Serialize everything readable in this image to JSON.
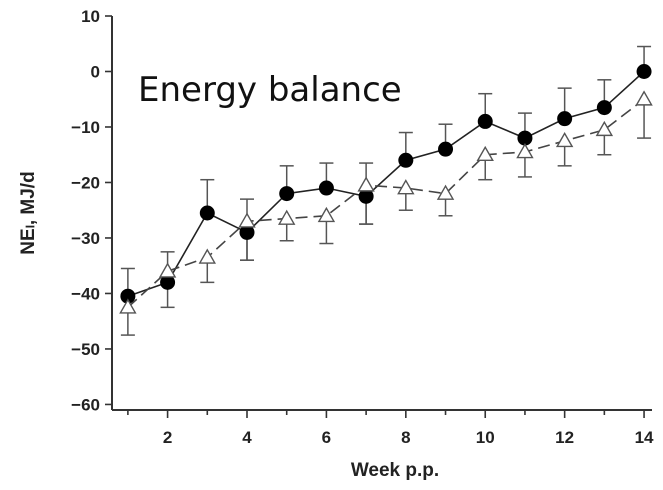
{
  "chart_data": {
    "type": "line",
    "title": "Energy balance",
    "xlabel": "Week p.p.",
    "ylabel": "NEₗ, MJ/d",
    "xlim": [
      0.6,
      14.2
    ],
    "ylim": [
      -61,
      10
    ],
    "xticks": [
      2,
      4,
      6,
      8,
      10,
      12,
      14
    ],
    "yticks": [
      10,
      0,
      -10,
      -20,
      -30,
      -40,
      -50,
      -60
    ],
    "x": [
      1,
      2,
      3,
      4,
      5,
      6,
      7,
      8,
      9,
      10,
      11,
      12,
      13,
      14
    ],
    "grid": false,
    "legend": "none",
    "series": [
      {
        "marker": "filled-circle",
        "line_style": "solid",
        "color": "#000000",
        "values": [
          -40.5,
          -38,
          -25.5,
          -29,
          -22,
          -21,
          -22.5,
          -16,
          -14,
          -9,
          -12,
          -8.5,
          -6.5,
          0
        ],
        "err_up": [
          5,
          5.5,
          6,
          6,
          5,
          4.5,
          6,
          5,
          4.5,
          5,
          4.5,
          5.5,
          5,
          4.5
        ],
        "err_down": [
          0,
          0,
          0,
          5,
          0,
          0,
          5,
          0,
          0,
          0,
          0,
          0,
          0,
          0
        ]
      },
      {
        "marker": "open-triangle",
        "line_style": "dashed",
        "color": "#555555",
        "values": [
          -42.5,
          -36,
          -33.5,
          -27,
          -26.5,
          -26,
          -20.5,
          -21,
          -22,
          -15,
          -14.5,
          -12.5,
          -10.5,
          -5
        ],
        "err_up": [
          0,
          0,
          0,
          0,
          0,
          0,
          0,
          0,
          0,
          0,
          0,
          0,
          0,
          0
        ],
        "err_down": [
          5,
          6.5,
          4.5,
          7,
          4,
          5,
          7,
          4,
          4,
          4.5,
          4.5,
          4.5,
          4.5,
          7
        ]
      }
    ]
  }
}
